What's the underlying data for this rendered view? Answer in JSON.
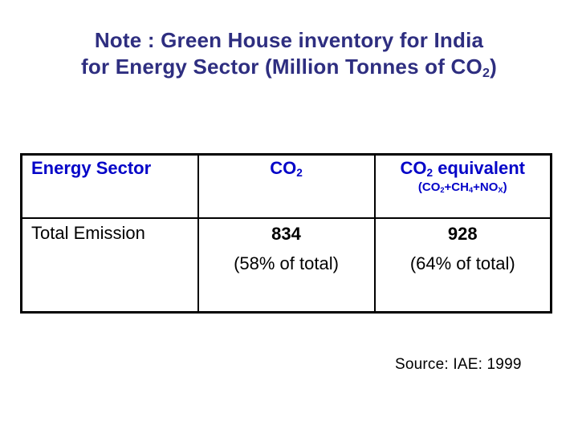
{
  "title": {
    "line1": "Note : Green House inventory for India",
    "line2_pre": "for Energy Sector (Million Tonnes of CO",
    "line2_sub": "2",
    "line2_post": ")"
  },
  "table": {
    "header": {
      "col1": "Energy Sector",
      "col2": {
        "base": "CO",
        "sub": "2"
      },
      "col3": {
        "base": "CO",
        "sub": "2",
        "rest": " equivalent",
        "formula": {
          "p1": "(CO",
          "s1": "2",
          "p2": "+CH",
          "s2": "4",
          "p3": "+NO",
          "s3": "X",
          "p4": ")"
        }
      }
    },
    "rows": [
      {
        "label": "Total Emission",
        "co2_value": "834",
        "co2_note": "(58% of total)",
        "co2eq_value": "928",
        "co2eq_note": "(64% of total)"
      }
    ]
  },
  "source": "Source: IAE: 1999",
  "colors": {
    "title_text": "#2e2e80",
    "header_text": "#0404c8",
    "body_text": "#000000",
    "table_border": "#000000",
    "background": "#ffffff"
  }
}
